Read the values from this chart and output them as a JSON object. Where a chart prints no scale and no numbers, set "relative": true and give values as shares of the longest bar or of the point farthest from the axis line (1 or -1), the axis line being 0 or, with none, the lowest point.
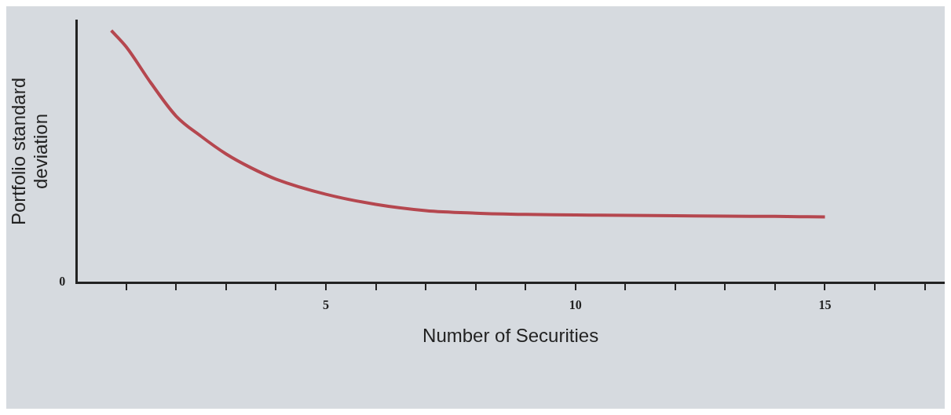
{
  "chart_data": {
    "type": "line",
    "xlabel": "Number of Securities",
    "ylabel": "Portfolio standard\ndeviation",
    "relative": true,
    "x": [
      0.7,
      1,
      1.5,
      2,
      2.5,
      3,
      3.5,
      4,
      5,
      6,
      7,
      8,
      9,
      10,
      11,
      12,
      13,
      14,
      15
    ],
    "series": [
      {
        "color": "#b5474f",
        "values": [
          1,
          0.935,
          0.79,
          0.66,
          0.58,
          0.51,
          0.455,
          0.41,
          0.35,
          0.31,
          0.285,
          0.275,
          0.27,
          0.268,
          0.266,
          0.265,
          0.263,
          0.262,
          0.26
        ]
      }
    ],
    "xlim": [
      0,
      17.4
    ],
    "xticks": [
      {
        "value": 1,
        "label": null
      },
      {
        "value": 2,
        "label": null
      },
      {
        "value": 3,
        "label": null
      },
      {
        "value": 4,
        "label": null
      },
      5,
      {
        "value": 6,
        "label": null
      },
      {
        "value": 7,
        "label": null
      },
      {
        "value": 8,
        "label": null
      },
      {
        "value": 9,
        "label": null
      },
      10,
      {
        "value": 11,
        "label": null
      },
      {
        "value": 12,
        "label": null
      },
      {
        "value": 13,
        "label": null
      },
      {
        "value": 14,
        "label": null
      },
      15,
      {
        "value": 16,
        "label": null
      },
      {
        "value": 17,
        "label": null
      }
    ],
    "annotations": [
      "0"
    ],
    "grid": false,
    "legend": false,
    "marker": "none",
    "line_style": "solid"
  }
}
